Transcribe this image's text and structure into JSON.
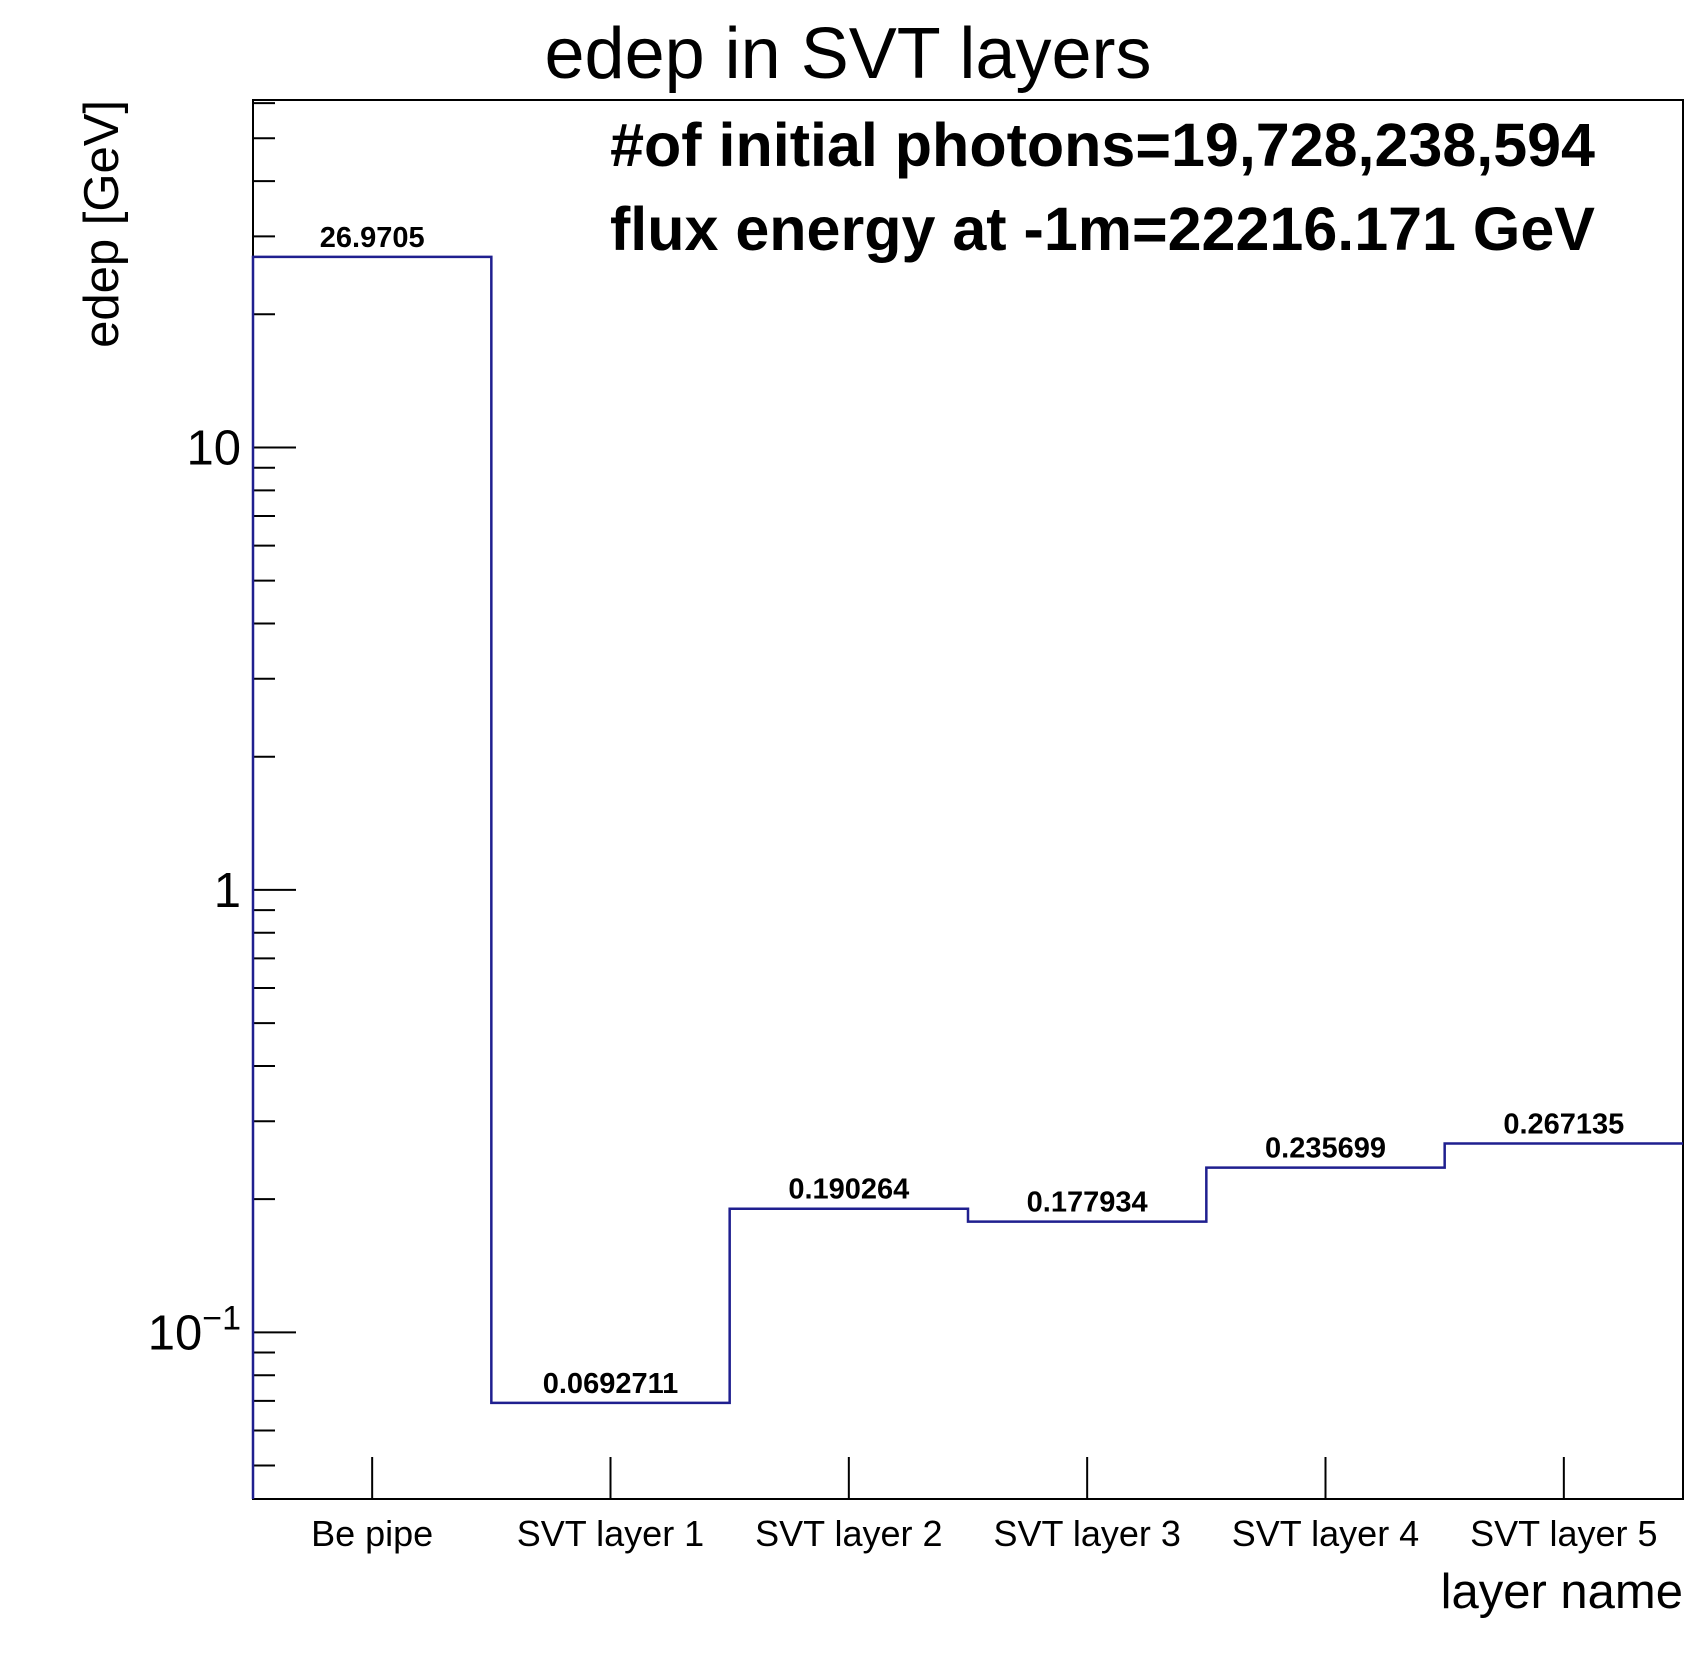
{
  "chart_data": {
    "type": "bar",
    "title": "edep in SVT layers",
    "xlabel": "layer name",
    "ylabel": "edep [GeV]",
    "yscale": "log",
    "ylim": [
      0.042,
      61
    ],
    "categories": [
      "Be pipe",
      "SVT layer 1",
      "SVT layer 2",
      "SVT layer 3",
      "SVT layer 4",
      "SVT layer 5"
    ],
    "series": [
      {
        "values": [
          26.9705,
          0.0692711,
          0.190264,
          0.177934,
          0.235699,
          0.267135
        ],
        "color": "#1f1f8f",
        "style": "step"
      }
    ],
    "data_labels": [
      "26.9705",
      "0.0692711",
      "0.190264",
      "0.177934",
      "0.235699",
      "0.267135"
    ],
    "y_ticks": [
      {
        "value": 10,
        "label": "10"
      },
      {
        "value": 1,
        "label": "1"
      },
      {
        "value": 0.1,
        "base": "10",
        "exp": "−1"
      }
    ],
    "annotations": [
      "#of initial photons=19,728,238,594",
      "flux energy at -1m=22216.171 GeV"
    ],
    "grid": false,
    "legend": "none"
  }
}
